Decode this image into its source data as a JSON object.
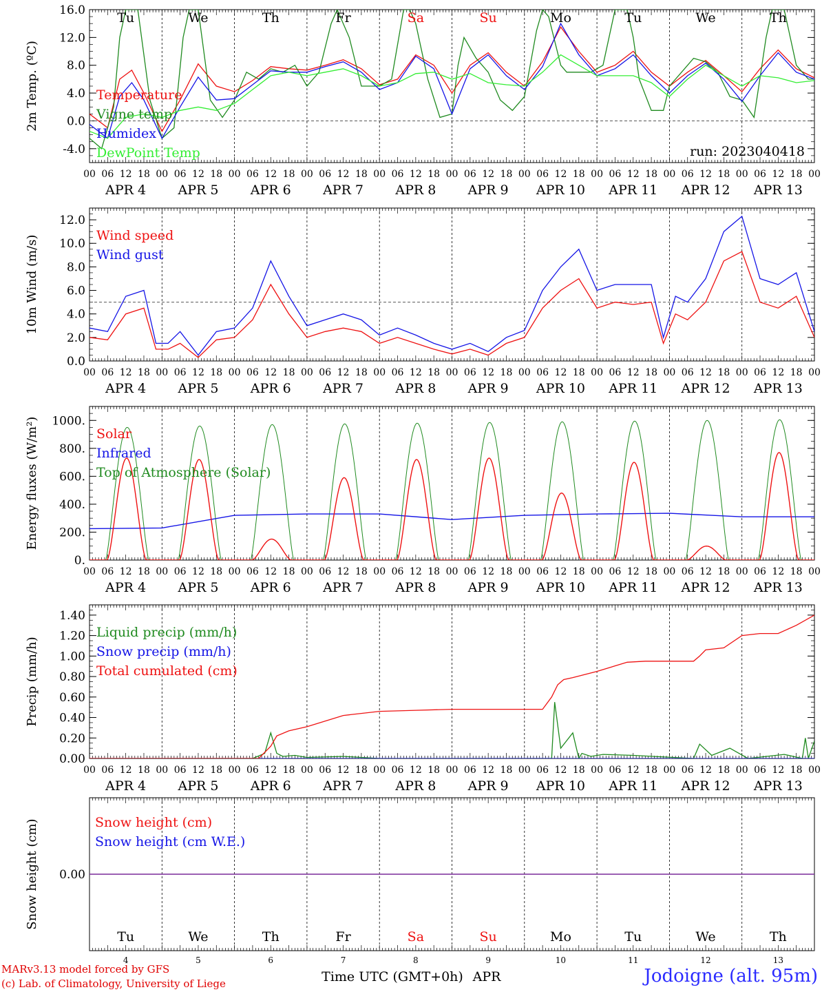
{
  "run_label": "run: 2023040418",
  "footer": {
    "credit_line1": "MARv3.13 model forced by GFS",
    "credit_line2": "(c) Lab. of Climatology, University of Liege",
    "station": "Jodoigne (alt. 95m)",
    "time_axis_label": "Time UTC (GMT+0h)",
    "month_label": "APR"
  },
  "days": [
    {
      "abbr": "Tu",
      "date": "APR  4",
      "num": "4",
      "weekend": false
    },
    {
      "abbr": "We",
      "date": "APR  5",
      "num": "5",
      "weekend": false
    },
    {
      "abbr": "Th",
      "date": "APR  6",
      "num": "6",
      "weekend": false
    },
    {
      "abbr": "Fr",
      "date": "APR  7",
      "num": "7",
      "weekend": false
    },
    {
      "abbr": "Sa",
      "date": "APR  8",
      "num": "8",
      "weekend": true
    },
    {
      "abbr": "Su",
      "date": "APR  9",
      "num": "9",
      "weekend": true
    },
    {
      "abbr": "Mo",
      "date": "APR 10",
      "num": "10",
      "weekend": false
    },
    {
      "abbr": "Tu",
      "date": "APR 11",
      "num": "11",
      "weekend": false
    },
    {
      "abbr": "We",
      "date": "APR 12",
      "num": "12",
      "weekend": false
    },
    {
      "abbr": "Th",
      "date": "APR 13",
      "num": "13",
      "weekend": false
    }
  ],
  "hour_ticks": [
    "00",
    "06",
    "12",
    "18"
  ],
  "final_hour_tick": "00",
  "colors": {
    "red": "#ee1111",
    "green": "#1f8a1f",
    "blue": "#1414e6",
    "lightgreen": "#33ee33",
    "purple": "#7a2a9a",
    "black": "#000000"
  },
  "chart_data": [
    {
      "type": "line",
      "ylabel": "2m Temp. (ºC)",
      "ylim": [
        -6,
        16
      ],
      "yticks": [
        "-4.0",
        "0.0",
        "4.0",
        "8.0",
        "12.0",
        "16.0"
      ],
      "ytick_values": [
        -4,
        0,
        4,
        8,
        12,
        16
      ],
      "reference_line": 0,
      "x_unit": "hours since APR 4 00 UTC",
      "series": [
        {
          "name": "Temperature",
          "color": "red",
          "x": [
            0,
            6,
            10,
            14,
            18,
            24,
            30,
            36,
            42,
            48,
            54,
            60,
            66,
            72,
            78,
            84,
            90,
            96,
            102,
            108,
            114,
            120,
            126,
            132,
            138,
            144,
            150,
            156,
            162,
            168,
            174,
            180,
            186,
            192,
            198,
            204,
            210,
            216,
            222,
            228,
            234,
            240
          ],
          "y": [
            1.0,
            -1.0,
            6.0,
            7.3,
            4.0,
            -1.5,
            3.0,
            8.2,
            5.0,
            4.2,
            5.8,
            7.8,
            7.5,
            7.3,
            8.0,
            8.8,
            7.5,
            5.2,
            6.0,
            9.5,
            8.0,
            4.0,
            8.0,
            9.8,
            7.0,
            5.0,
            8.5,
            13.5,
            10.0,
            7.0,
            8.0,
            10.0,
            7.0,
            5.0,
            7.0,
            8.7,
            6.5,
            4.2,
            7.5,
            10.2,
            7.5,
            6.2
          ]
        },
        {
          "name": "Vigne temp",
          "color": "green",
          "x": [
            0,
            4,
            8,
            10,
            12,
            16,
            20,
            24,
            28,
            31,
            33,
            36,
            40,
            44,
            48,
            52,
            56,
            60,
            64,
            68,
            72,
            76,
            80,
            82,
            86,
            90,
            96,
            100,
            104,
            106,
            108,
            112,
            116,
            120,
            122,
            124,
            128,
            132,
            136,
            140,
            144,
            148,
            150,
            152,
            156,
            158,
            162,
            166,
            170,
            174,
            178,
            180,
            182,
            186,
            190,
            192,
            196,
            200,
            204,
            208,
            212,
            216,
            220,
            224,
            226,
            230,
            234,
            238,
            240
          ],
          "y": [
            -2.5,
            -4.0,
            2.0,
            12.0,
            16.0,
            16.0,
            3.0,
            -2.5,
            -1.0,
            12.0,
            16.0,
            16.0,
            3.0,
            0.5,
            3.0,
            7.0,
            6.0,
            7.5,
            7.0,
            8.0,
            5.0,
            7.0,
            14.0,
            16.0,
            12.0,
            5.0,
            5.0,
            6.0,
            16.0,
            16.0,
            14.0,
            6.0,
            0.5,
            1.0,
            8.0,
            12.0,
            9.0,
            7.0,
            3.0,
            1.5,
            3.5,
            13.0,
            16.0,
            15.0,
            8.0,
            7.0,
            7.0,
            7.0,
            8.0,
            16.0,
            16.0,
            12.0,
            6.0,
            1.5,
            1.5,
            5.0,
            7.0,
            9.0,
            8.5,
            7.0,
            3.5,
            3.0,
            0.5,
            12.0,
            16.0,
            16.0,
            8.0,
            6.0,
            6.0
          ]
        },
        {
          "name": "Humidex",
          "color": "blue",
          "x": [
            0,
            6,
            10,
            14,
            18,
            24,
            30,
            36,
            42,
            48,
            54,
            60,
            66,
            72,
            78,
            84,
            90,
            96,
            102,
            108,
            114,
            120,
            126,
            132,
            138,
            144,
            150,
            156,
            162,
            168,
            174,
            180,
            186,
            192,
            198,
            204,
            210,
            216,
            222,
            228,
            234,
            240
          ],
          "y": [
            -0.5,
            -2.5,
            3.5,
            5.5,
            3.0,
            -2.5,
            2.0,
            6.3,
            3.0,
            3.2,
            5.2,
            7.2,
            7.0,
            7.0,
            7.8,
            8.5,
            7.0,
            4.5,
            5.5,
            9.3,
            7.5,
            1.0,
            7.5,
            9.5,
            6.5,
            4.5,
            7.8,
            14.0,
            9.5,
            6.5,
            7.5,
            9.5,
            6.5,
            4.0,
            6.5,
            8.3,
            6.0,
            2.8,
            6.5,
            9.8,
            7.0,
            6.0
          ]
        },
        {
          "name": "DewPoint Temp",
          "color": "lightgreen",
          "x": [
            0,
            6,
            12,
            18,
            24,
            30,
            36,
            42,
            48,
            54,
            60,
            66,
            72,
            78,
            84,
            90,
            96,
            102,
            108,
            114,
            120,
            126,
            132,
            138,
            144,
            150,
            156,
            162,
            168,
            174,
            180,
            186,
            192,
            198,
            204,
            210,
            216,
            222,
            228,
            234,
            240
          ],
          "y": [
            -1.5,
            -2.5,
            0.5,
            1.0,
            0.5,
            1.5,
            2.0,
            1.5,
            2.5,
            4.5,
            6.5,
            7.0,
            6.5,
            7.0,
            7.5,
            6.5,
            5.0,
            5.5,
            6.8,
            7.0,
            6.0,
            6.8,
            5.5,
            5.2,
            5.0,
            7.0,
            9.5,
            8.0,
            6.5,
            6.5,
            6.5,
            5.5,
            3.5,
            6.0,
            8.0,
            6.5,
            5.0,
            6.5,
            6.2,
            5.5,
            5.8
          ]
        }
      ]
    },
    {
      "type": "line",
      "ylabel": "10m Wind (m/s)",
      "ylim": [
        0,
        13
      ],
      "yticks": [
        "0.0",
        "2.0",
        "4.0",
        "6.0",
        "8.0",
        "10.0",
        "12.0"
      ],
      "ytick_values": [
        0,
        2,
        4,
        6,
        8,
        10,
        12
      ],
      "reference_line": 5,
      "x_unit": "hours since APR 4 00 UTC",
      "series": [
        {
          "name": "Wind speed",
          "color": "red",
          "x": [
            0,
            6,
            12,
            18,
            22,
            26,
            30,
            36,
            42,
            48,
            54,
            60,
            66,
            72,
            78,
            84,
            90,
            96,
            102,
            108,
            114,
            120,
            126,
            132,
            138,
            144,
            150,
            156,
            162,
            168,
            174,
            180,
            186,
            190,
            194,
            198,
            204,
            210,
            216,
            222,
            228,
            234,
            240
          ],
          "y": [
            2.0,
            1.8,
            4.0,
            4.5,
            1.0,
            1.0,
            1.5,
            0.3,
            1.8,
            2.0,
            3.5,
            6.5,
            4.0,
            2.0,
            2.5,
            2.8,
            2.5,
            1.5,
            2.0,
            1.5,
            1.0,
            0.6,
            1.0,
            0.5,
            1.5,
            2.0,
            4.5,
            6.0,
            7.0,
            4.5,
            5.0,
            4.8,
            5.0,
            1.5,
            4.0,
            3.5,
            5.0,
            8.5,
            9.3,
            5.0,
            4.5,
            5.5,
            2.0
          ]
        },
        {
          "name": "Wind gust",
          "color": "blue",
          "x": [
            0,
            6,
            12,
            18,
            22,
            26,
            30,
            36,
            42,
            48,
            54,
            60,
            66,
            72,
            78,
            84,
            90,
            96,
            102,
            108,
            114,
            120,
            126,
            132,
            138,
            144,
            150,
            156,
            162,
            168,
            174,
            180,
            186,
            190,
            194,
            198,
            204,
            210,
            216,
            222,
            228,
            234,
            240
          ],
          "y": [
            2.8,
            2.5,
            5.5,
            6.0,
            1.5,
            1.5,
            2.5,
            0.5,
            2.5,
            2.8,
            4.5,
            8.5,
            5.5,
            3.0,
            3.5,
            4.0,
            3.5,
            2.2,
            2.8,
            2.2,
            1.5,
            1.0,
            1.5,
            0.8,
            2.0,
            2.6,
            6.0,
            8.0,
            9.5,
            6.0,
            6.5,
            6.5,
            6.5,
            2.0,
            5.5,
            5.0,
            7.0,
            11.0,
            12.3,
            7.0,
            6.5,
            7.5,
            2.5
          ]
        }
      ]
    },
    {
      "type": "line",
      "ylabel": "Energy fluxes (W/m²)",
      "ylim": [
        0,
        1100
      ],
      "yticks": [
        "0.",
        "200.",
        "400.",
        "600.",
        "800.",
        "1000."
      ],
      "ytick_values": [
        0,
        200,
        400,
        600,
        800,
        1000
      ],
      "x_unit": "hours since APR 4 00 UTC",
      "toa_peaks": [
        950,
        960,
        970,
        975,
        980,
        985,
        990,
        995,
        1000,
        1005
      ],
      "solar_peaks": [
        730,
        720,
        150,
        590,
        720,
        730,
        480,
        700,
        100,
        770
      ],
      "infrared_levels": [
        225,
        230,
        320,
        330,
        330,
        290,
        320,
        330,
        335,
        310
      ],
      "series": [
        {
          "name": "Solar",
          "color": "red"
        },
        {
          "name": "Infrared",
          "color": "blue"
        },
        {
          "name": "Top of Atmosphere (Solar)",
          "color": "green"
        }
      ]
    },
    {
      "type": "line",
      "ylabel": "Precip (mm/h)",
      "ylim": [
        0,
        1.5
      ],
      "yticks": [
        "0.00",
        "0.20",
        "0.40",
        "0.60",
        "0.80",
        "1.00",
        "1.20",
        "1.40"
      ],
      "ytick_values": [
        0,
        0.2,
        0.4,
        0.6,
        0.8,
        1.0,
        1.2,
        1.4
      ],
      "x_unit": "hours since APR 4 00 UTC",
      "series": [
        {
          "name": "Liquid precip (mm/h)",
          "color": "green",
          "x": [
            0,
            54,
            58,
            60,
            62,
            64,
            68,
            72,
            84,
            96,
            150,
            153,
            154,
            156,
            160,
            162,
            163,
            166,
            170,
            180,
            200,
            202,
            206,
            212,
            218,
            230,
            236,
            237,
            238,
            240
          ],
          "y": [
            0,
            0,
            0.05,
            0.25,
            0.05,
            0.02,
            0.03,
            0.01,
            0.02,
            0,
            0,
            0.0,
            0.55,
            0.1,
            0.25,
            0.0,
            0.05,
            0.02,
            0.04,
            0.03,
            0,
            0.14,
            0.03,
            0.1,
            0,
            0.04,
            0.0,
            0.2,
            0.0,
            0.17
          ]
        },
        {
          "name": "Snow precip (mm/h)",
          "color": "blue",
          "x": [
            0,
            240
          ],
          "y": [
            0,
            0
          ]
        },
        {
          "name": "Total cumulated (cm)",
          "color": "red",
          "x": [
            0,
            56,
            60,
            62,
            66,
            72,
            84,
            96,
            108,
            120,
            132,
            144,
            150,
            153,
            155,
            157,
            160,
            168,
            178,
            184,
            192,
            200,
            202,
            204,
            210,
            216,
            222,
            228,
            234,
            240
          ],
          "y": [
            0,
            0,
            0.12,
            0.22,
            0.27,
            0.31,
            0.42,
            0.46,
            0.47,
            0.48,
            0.48,
            0.48,
            0.48,
            0.6,
            0.72,
            0.77,
            0.79,
            0.85,
            0.94,
            0.95,
            0.95,
            0.95,
            1.0,
            1.06,
            1.08,
            1.2,
            1.22,
            1.22,
            1.3,
            1.4
          ]
        }
      ]
    },
    {
      "type": "line",
      "ylabel": "Snow height (cm)",
      "ylim": [
        -1,
        1
      ],
      "yticks": [
        "0.00"
      ],
      "ytick_values": [
        0
      ],
      "x_unit": "hours since APR 4 00 UTC",
      "series": [
        {
          "name": "Snow height (cm)",
          "color": "red",
          "x": [
            0,
            240
          ],
          "y": [
            0,
            0
          ]
        },
        {
          "name": "Snow height (cm W.E.)",
          "color": "blue",
          "x": [
            0,
            240
          ],
          "y": [
            0,
            0
          ]
        }
      ]
    }
  ]
}
